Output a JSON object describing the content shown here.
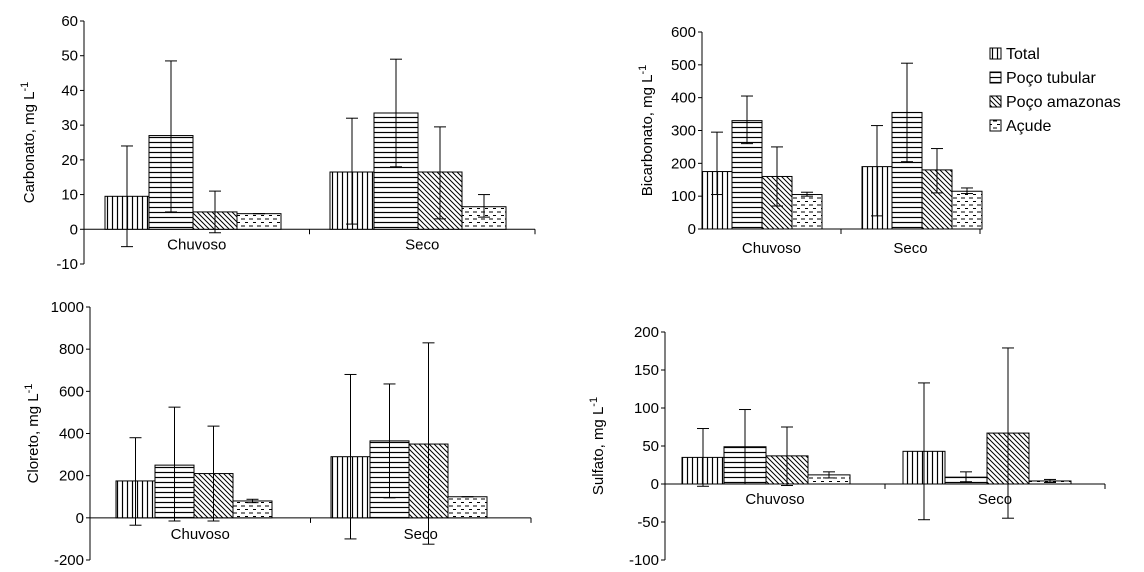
{
  "legend": {
    "placement": "right of top-right chart",
    "items": [
      {
        "name": "Total",
        "pattern": "vertical-lines"
      },
      {
        "name": "Poço tubular",
        "pattern": "horizontal-lines"
      },
      {
        "name": "Poço amazonas",
        "pattern": "diagonal-lines"
      },
      {
        "name": "Açude",
        "pattern": "dashes"
      }
    ]
  },
  "chart_data": [
    {
      "type": "bar",
      "ylabel": "Carbonato, mg L",
      "ylabel_sup": "-1",
      "categories": [
        "Chuvoso",
        "Seco"
      ],
      "ylim": [
        -10,
        60
      ],
      "yticks": [
        -10,
        0,
        10,
        20,
        30,
        40,
        50,
        60
      ],
      "category_axis_at": 0,
      "grid": false,
      "series": [
        {
          "name": "Total",
          "values": [
            9.5,
            16.5
          ],
          "err_low": [
            -5,
            1.5
          ],
          "err_high": [
            24,
            32
          ]
        },
        {
          "name": "Poço tubular",
          "values": [
            27,
            33.5
          ],
          "err_low": [
            5,
            18
          ],
          "err_high": [
            48.5,
            49
          ]
        },
        {
          "name": "Poço amazonas",
          "values": [
            5,
            16.5
          ],
          "err_low": [
            -1,
            3
          ],
          "err_high": [
            11,
            29.5
          ]
        },
        {
          "name": "Açude",
          "values": [
            4.5,
            6.5
          ],
          "err_low": [
            4.5,
            3.5
          ],
          "err_high": [
            4.5,
            10
          ]
        }
      ]
    },
    {
      "type": "bar",
      "ylabel": "Bicarbonato, mg L",
      "ylabel_sup": "-1",
      "categories": [
        "Chuvoso",
        "Seco"
      ],
      "ylim": [
        0,
        600
      ],
      "yticks": [
        0,
        100,
        200,
        300,
        400,
        500,
        600
      ],
      "category_axis_at": 0,
      "grid": false,
      "series": [
        {
          "name": "Total",
          "values": [
            175,
            190
          ],
          "err_low": [
            105,
            40
          ],
          "err_high": [
            295,
            315
          ]
        },
        {
          "name": "Poço tubular",
          "values": [
            330,
            355
          ],
          "err_low": [
            260,
            205
          ],
          "err_high": [
            405,
            505
          ]
        },
        {
          "name": "Poço amazonas",
          "values": [
            160,
            180
          ],
          "err_low": [
            70,
            110
          ],
          "err_high": [
            250,
            245
          ]
        },
        {
          "name": "Açude",
          "values": [
            105,
            115
          ],
          "err_low": [
            100,
            108
          ],
          "err_high": [
            112,
            125
          ]
        }
      ]
    },
    {
      "type": "bar",
      "ylabel": "Cloreto, mg L",
      "ylabel_sup": "-1",
      "categories": [
        "Chuvoso",
        "Seco"
      ],
      "ylim": [
        -200,
        1000
      ],
      "yticks": [
        -200,
        0,
        200,
        400,
        600,
        800,
        1000
      ],
      "category_axis_at": 0,
      "grid": false,
      "series": [
        {
          "name": "Total",
          "values": [
            175,
            290
          ],
          "err_low": [
            -35,
            -100
          ],
          "err_high": [
            380,
            680
          ]
        },
        {
          "name": "Poço tubular",
          "values": [
            250,
            365
          ],
          "err_low": [
            -15,
            95
          ],
          "err_high": [
            525,
            635
          ]
        },
        {
          "name": "Poço amazonas",
          "values": [
            210,
            350
          ],
          "err_low": [
            -15,
            -125
          ],
          "err_high": [
            435,
            830
          ]
        },
        {
          "name": "Açude",
          "values": [
            80,
            100
          ],
          "err_low": [
            72,
            100
          ],
          "err_high": [
            88,
            100
          ]
        }
      ]
    },
    {
      "type": "bar",
      "ylabel": "Sulfato, mg L",
      "ylabel_sup": "-1",
      "categories": [
        "Chuvoso",
        "Seco"
      ],
      "ylim": [
        -100,
        200
      ],
      "yticks": [
        -100,
        -50,
        0,
        50,
        100,
        150,
        200
      ],
      "category_axis_at": 0,
      "grid": false,
      "series": [
        {
          "name": "Total",
          "values": [
            35,
            43
          ],
          "err_low": [
            -3,
            -47
          ],
          "err_high": [
            73,
            133
          ]
        },
        {
          "name": "Poço tubular",
          "values": [
            49,
            9
          ],
          "err_low": [
            0,
            3
          ],
          "err_high": [
            98,
            16
          ]
        },
        {
          "name": "Poço amazonas",
          "values": [
            37,
            67
          ],
          "err_low": [
            -2,
            -45
          ],
          "err_high": [
            75,
            179
          ]
        },
        {
          "name": "Açude",
          "values": [
            12,
            4
          ],
          "err_low": [
            8,
            2
          ],
          "err_high": [
            16,
            6
          ]
        }
      ]
    }
  ]
}
